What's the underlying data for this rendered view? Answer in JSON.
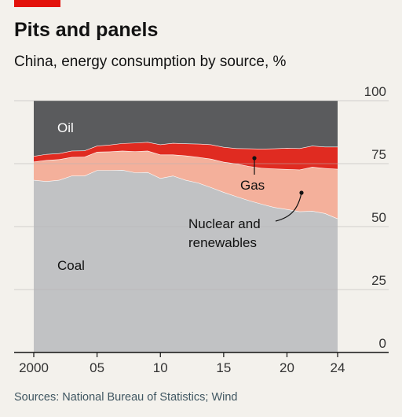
{
  "header": {
    "title": "Pits and panels",
    "subtitle": "China, energy consumption by source, %"
  },
  "source": "Sources: National Bureau of Statistics; Wind",
  "colors": {
    "accent": "#e3120b",
    "background": "#f3f1ec",
    "coal": "#c1c2c4",
    "nuclear_renewables": "#f4b09b",
    "gas": "#e02b21",
    "oil": "#5a5b5d"
  },
  "chart_data": {
    "type": "area",
    "stacked": true,
    "x": [
      2000,
      2001,
      2002,
      2003,
      2004,
      2005,
      2006,
      2007,
      2008,
      2009,
      2010,
      2011,
      2012,
      2013,
      2014,
      2015,
      2016,
      2017,
      2018,
      2019,
      2020,
      2021,
      2022,
      2023,
      2024
    ],
    "x_tick_labels": [
      "2000",
      "05",
      "10",
      "15",
      "20",
      "24"
    ],
    "x_tick_values": [
      2000,
      2005,
      2010,
      2015,
      2020,
      2024
    ],
    "ylim": [
      0,
      100
    ],
    "y_ticks": [
      0,
      25,
      50,
      75,
      100
    ],
    "y_tick_labels": [
      "0",
      "25",
      "50",
      "75",
      "100"
    ],
    "y_axis_side": "right",
    "grid": true,
    "series": [
      {
        "name": "Coal",
        "values": [
          68.5,
          68.0,
          68.5,
          70.2,
          70.2,
          72.4,
          72.4,
          72.5,
          71.5,
          71.6,
          69.2,
          70.2,
          68.5,
          67.4,
          65.6,
          63.7,
          62.0,
          60.4,
          59.0,
          57.7,
          56.9,
          56.0,
          56.2,
          55.3,
          53.2
        ]
      },
      {
        "name": "Nuclear and renewables",
        "values": [
          7.3,
          8.4,
          8.2,
          7.4,
          7.5,
          7.3,
          7.4,
          7.6,
          8.4,
          8.5,
          9.4,
          8.4,
          9.7,
          10.2,
          11.3,
          12.0,
          13.0,
          13.6,
          14.3,
          15.3,
          15.9,
          16.6,
          17.5,
          17.9,
          19.7
        ]
      },
      {
        "name": "Gas",
        "values": [
          2.2,
          2.4,
          2.4,
          2.5,
          2.5,
          2.4,
          2.7,
          3.0,
          3.4,
          3.5,
          4.0,
          4.6,
          4.8,
          5.3,
          5.7,
          5.9,
          6.1,
          7.0,
          7.6,
          8.0,
          8.4,
          8.5,
          8.4,
          8.5,
          8.8
        ]
      },
      {
        "name": "Oil",
        "values": [
          22.0,
          21.2,
          20.9,
          19.9,
          19.8,
          17.9,
          17.5,
          16.9,
          16.7,
          16.4,
          17.4,
          16.8,
          17.0,
          17.1,
          17.4,
          18.4,
          18.9,
          19.0,
          19.1,
          19.0,
          18.8,
          18.9,
          17.9,
          18.3,
          18.3
        ]
      }
    ],
    "labels": {
      "oil": "Oil",
      "gas": "Gas",
      "nuclear_line1": "Nuclear and",
      "nuclear_line2": "renewables",
      "coal": "Coal"
    }
  }
}
